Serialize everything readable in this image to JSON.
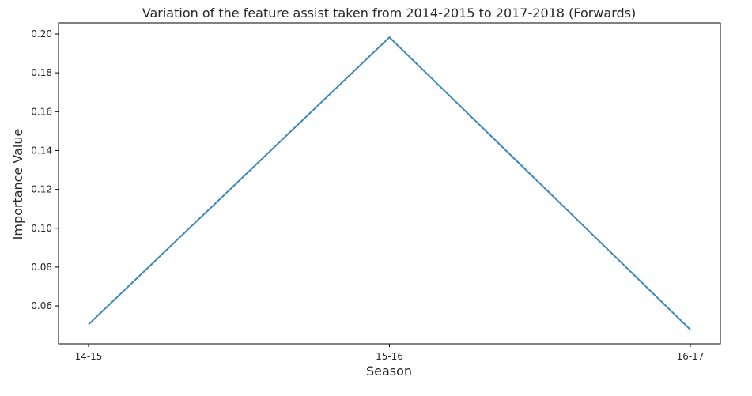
{
  "chart_data": {
    "type": "line",
    "title": "Variation of the feature assist taken from 2014-2015 to 2017-2018 (Forwards)",
    "xlabel": "Season",
    "ylabel": "Importance Value",
    "categories": [
      "14-15",
      "15-16",
      "16-17"
    ],
    "series": [
      {
        "values": [
          0.0505,
          0.1983,
          0.0478
        ],
        "color": "#3b87c0"
      }
    ],
    "ylim": [
      0.0405,
      0.2057
    ],
    "yticks": [
      0.06,
      0.08,
      0.1,
      0.12,
      0.14,
      0.16,
      0.18,
      0.2
    ],
    "ytick_labels": [
      "0.06",
      "0.08",
      "0.10",
      "0.12",
      "0.14",
      "0.16",
      "0.18",
      "0.20"
    ],
    "grid": false,
    "legend": "none"
  }
}
